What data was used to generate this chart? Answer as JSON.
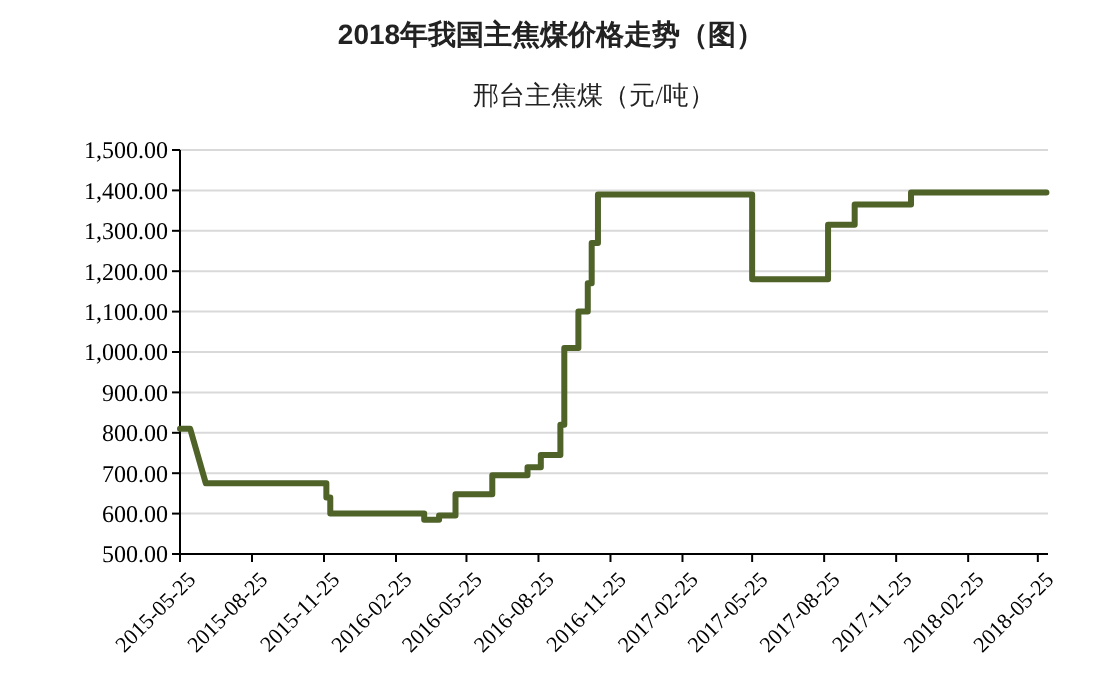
{
  "chart_data": {
    "type": "line",
    "title": "2018年我国主焦煤价格走势（图）",
    "subtitle": "邢台主焦煤（元/吨）",
    "x": [
      "2015-05-25",
      "2015-06-07",
      "2015-06-27",
      "2015-11-28",
      "2015-11-28",
      "2015-12-03",
      "2015-12-03",
      "2016-04-01",
      "2016-04-01",
      "2016-04-20",
      "2016-04-20",
      "2016-05-11",
      "2016-05-11",
      "2016-06-27",
      "2016-06-27",
      "2016-08-11",
      "2016-08-11",
      "2016-08-28",
      "2016-08-28",
      "2016-09-22",
      "2016-09-22",
      "2016-09-27",
      "2016-09-27",
      "2016-10-15",
      "2016-10-15",
      "2016-10-27",
      "2016-10-27",
      "2016-11-01",
      "2016-11-01",
      "2016-11-09",
      "2016-11-09",
      "2017-05-25",
      "2017-05-25",
      "2017-08-30",
      "2017-08-30",
      "2017-10-03",
      "2017-10-03",
      "2017-12-14",
      "2017-12-14",
      "2018-06-05"
    ],
    "series": [
      {
        "color": "#4f6228",
        "values": [
          810,
          810,
          675,
          675,
          640,
          640,
          600,
          600,
          585,
          585,
          595,
          595,
          648,
          648,
          695,
          695,
          715,
          715,
          745,
          745,
          820,
          820,
          1010,
          1010,
          1100,
          1100,
          1170,
          1170,
          1270,
          1270,
          1390,
          1390,
          1180,
          1180,
          1315,
          1315,
          1365,
          1365,
          1395,
          1395
        ]
      }
    ],
    "xlim": [
      "2015-05-25",
      "2018-06-07"
    ],
    "xticks": [
      "2015-05-25",
      "2015-08-25",
      "2015-11-25",
      "2016-02-25",
      "2016-05-25",
      "2016-08-25",
      "2016-11-25",
      "2017-02-25",
      "2017-05-25",
      "2017-08-25",
      "2017-11-25",
      "2018-02-25",
      "2018-05-25"
    ],
    "ylim": [
      500,
      1500
    ],
    "yticks": [
      {
        "value": 500,
        "label": "500.00"
      },
      {
        "value": 600,
        "label": "600.00"
      },
      {
        "value": 700,
        "label": "700.00"
      },
      {
        "value": 800,
        "label": "800.00"
      },
      {
        "value": 900,
        "label": "900.00"
      },
      {
        "value": 1000,
        "label": "1,000.00"
      },
      {
        "value": 1100,
        "label": "1,100.00"
      },
      {
        "value": 1200,
        "label": "1,200.00"
      },
      {
        "value": 1300,
        "label": "1,300.00"
      },
      {
        "value": 1400,
        "label": "1,400.00"
      },
      {
        "value": 1500,
        "label": "1,500.00"
      }
    ],
    "grid": "y",
    "marker": "none",
    "line_style": "solid"
  }
}
